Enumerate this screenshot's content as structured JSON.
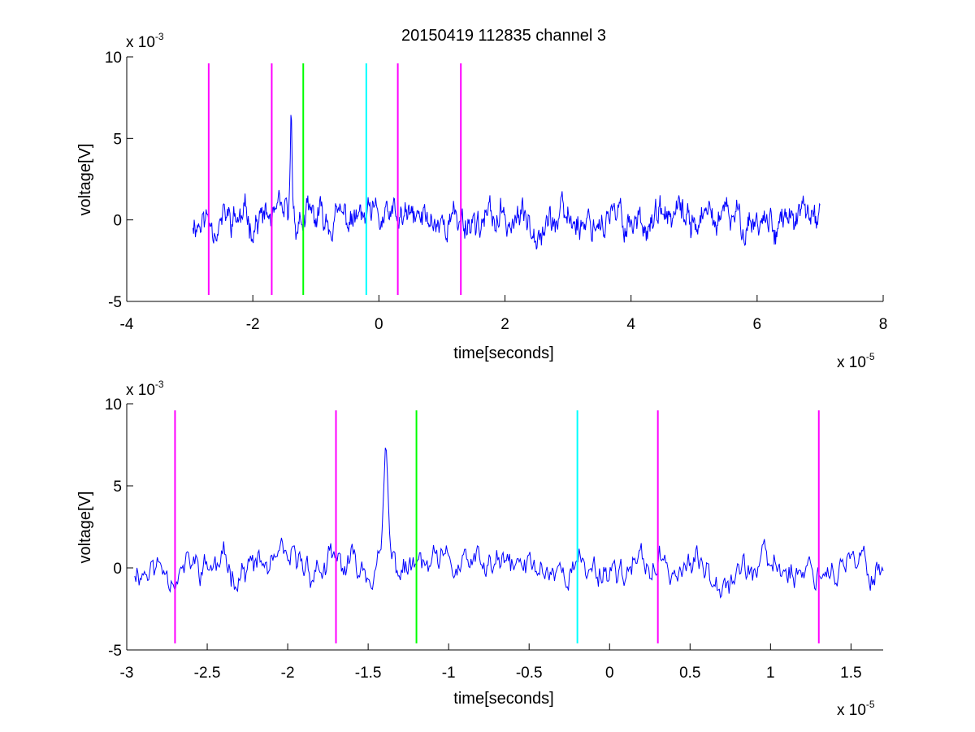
{
  "chart_data": [
    {
      "type": "line",
      "title": "20150419 112835 channel 3",
      "xlabel": "time[seconds]",
      "ylabel": "voltage[V]",
      "x_multiplier_label": "x 10",
      "x_multiplier_exp": "-5",
      "y_multiplier_label": "x 10",
      "y_multiplier_exp": "-3",
      "xlim": [
        -4,
        8
      ],
      "ylim": [
        -5,
        10
      ],
      "xticks": [
        -4,
        -2,
        0,
        2,
        4,
        6,
        8
      ],
      "xtick_labels": [
        "-4",
        "-2",
        "0",
        "2",
        "4",
        "6",
        "8"
      ],
      "yticks": [
        -5,
        0,
        5,
        10
      ],
      "ytick_labels": [
        "-5",
        "0",
        "5",
        "10"
      ],
      "grid": false,
      "signal": {
        "color": "#0000ff",
        "x_start": -2.95,
        "x_end": 7.0,
        "samples": 1000,
        "seed": 11
      },
      "markers": [
        {
          "x": -2.7,
          "color": "#ff00ff"
        },
        {
          "x": -1.7,
          "color": "#ff00ff"
        },
        {
          "x": -1.2,
          "color": "#00ff00"
        },
        {
          "x": -0.2,
          "color": "#00ffff"
        },
        {
          "x": 0.3,
          "color": "#ff00ff"
        },
        {
          "x": 1.3,
          "color": "#ff00ff"
        }
      ],
      "marker_range": [
        -4.6,
        9.6
      ]
    },
    {
      "type": "line",
      "title": "",
      "xlabel": "time[seconds]",
      "ylabel": "voltage[V]",
      "x_multiplier_label": "x 10",
      "x_multiplier_exp": "-5",
      "y_multiplier_label": "x 10",
      "y_multiplier_exp": "-3",
      "xlim": [
        -3.0,
        1.7
      ],
      "ylim": [
        -5,
        10
      ],
      "xticks": [
        -3,
        -2.5,
        -2,
        -1.5,
        -1,
        -0.5,
        0,
        0.5,
        1,
        1.5
      ],
      "xtick_labels": [
        "-3",
        "-2.5",
        "-2",
        "-1.5",
        "-1",
        "-0.5",
        "0",
        "0.5",
        "1",
        "1.5"
      ],
      "yticks": [
        -5,
        0,
        5,
        10
      ],
      "ytick_labels": [
        "-5",
        "0",
        "5",
        "10"
      ],
      "grid": false,
      "signal": {
        "color": "#0000ff",
        "x_start": -2.95,
        "x_end": 1.7,
        "samples": 700,
        "seed": 11
      },
      "markers": [
        {
          "x": -2.7,
          "color": "#ff00ff"
        },
        {
          "x": -1.7,
          "color": "#ff00ff"
        },
        {
          "x": -1.2,
          "color": "#00ff00"
        },
        {
          "x": -0.2,
          "color": "#00ffff"
        },
        {
          "x": 0.3,
          "color": "#ff00ff"
        },
        {
          "x": 1.3,
          "color": "#ff00ff"
        }
      ],
      "marker_range": [
        -4.6,
        9.6
      ]
    }
  ]
}
